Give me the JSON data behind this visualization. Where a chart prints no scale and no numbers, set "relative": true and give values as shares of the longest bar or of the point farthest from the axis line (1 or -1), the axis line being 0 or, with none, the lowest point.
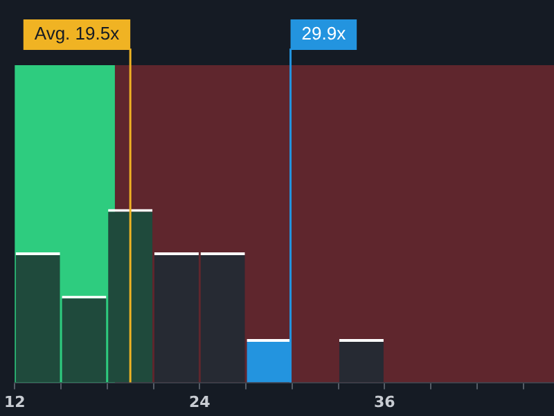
{
  "chart_data": {
    "type": "bar",
    "relative": true,
    "x": [
      13.5,
      16.5,
      19.5,
      22.5,
      25.5,
      28.5,
      31.5,
      34.5,
      37.5
    ],
    "values": [
      0.75,
      0.5,
      1,
      0.75,
      0.75,
      0.25,
      0,
      0.25,
      0
    ],
    "colors": [
      "#1f4a3c",
      "#1f4a3c",
      "#1f4a3c",
      "#262a33",
      "#262a33",
      "#2394df",
      "#262a33",
      "#262a33",
      "#262a33"
    ],
    "xlim": [
      12,
      47
    ],
    "xticks": [
      12,
      {
        "value": 15,
        "label": null
      },
      {
        "value": 18,
        "label": null
      },
      {
        "value": 21,
        "label": null
      },
      24,
      {
        "value": 27,
        "label": null
      },
      {
        "value": 30,
        "label": null
      },
      {
        "value": 33,
        "label": null
      },
      36,
      {
        "value": 39,
        "label": null
      },
      {
        "value": 42,
        "label": null
      },
      {
        "value": 45,
        "label": null
      }
    ],
    "bands": [
      {
        "axis": "x",
        "from": 12,
        "to": 18.5,
        "color": "#2ecc7f"
      },
      {
        "axis": "x",
        "from": 18.5,
        "to": 47,
        "color": "#d0383c"
      }
    ],
    "ref_lines": [
      {
        "axis": "x",
        "value": 19.5,
        "label": "Avg. 19.5x",
        "color": "#f0b323"
      },
      {
        "axis": "x",
        "value": 29.9,
        "label": "29.9x",
        "color": "#2394df"
      }
    ],
    "grid": false,
    "legend": false
  }
}
